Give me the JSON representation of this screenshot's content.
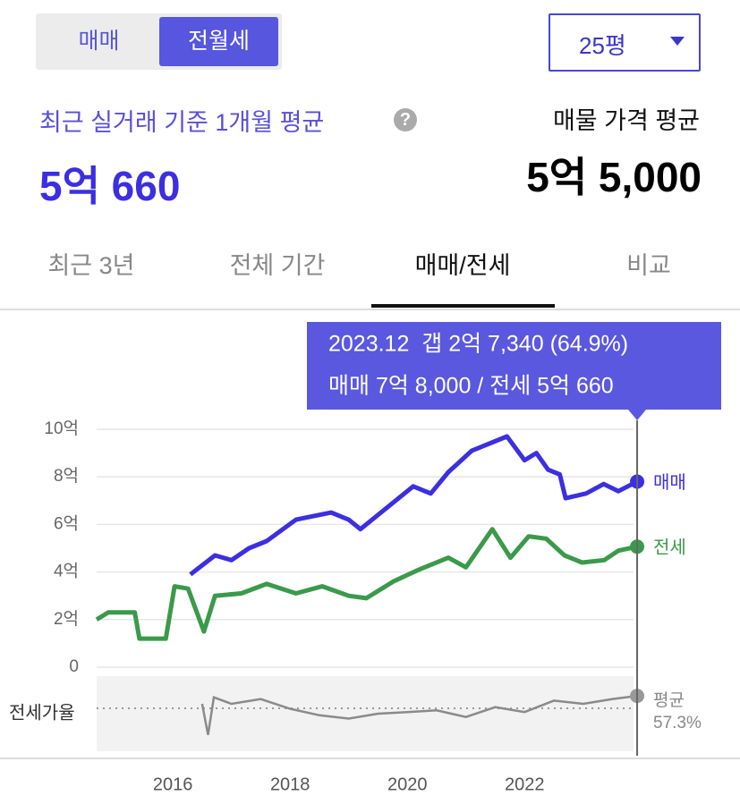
{
  "toggle": {
    "options": [
      "매매",
      "전월세"
    ],
    "selected": 1
  },
  "size_selector": "25평",
  "recent": {
    "label": "최근 실거래 기준 1개월 평균",
    "help_icon": "?",
    "value": "5억 660"
  },
  "listing": {
    "label": "매물 가격 평균",
    "value": "5억 5,000"
  },
  "tabs": {
    "items": [
      "최근 3년",
      "전체 기간",
      "매매/전세",
      "비교"
    ],
    "selected": 2
  },
  "chart_data": {
    "type": "line",
    "xlim": [
      2014.7,
      2023.95
    ],
    "xticks": [
      2016,
      2018,
      2020,
      2022
    ],
    "ylim": [
      0,
      10
    ],
    "yticks": [
      0,
      {
        "value": 2,
        "label": "2억"
      },
      {
        "value": 4,
        "label": "4억"
      },
      {
        "value": 6,
        "label": "6억"
      },
      {
        "value": 8,
        "label": "8억"
      },
      {
        "value": 10,
        "label": "10억"
      }
    ],
    "grid": true,
    "series": [
      {
        "name": "매매",
        "color": "#3b2fe0",
        "x": [
          2016.3,
          2016.72,
          2017.0,
          2017.3,
          2017.6,
          2018.1,
          2018.7,
          2019.0,
          2019.2,
          2019.6,
          2020.1,
          2020.4,
          2020.7,
          2021.1,
          2021.7,
          2022.0,
          2022.2,
          2022.4,
          2022.6,
          2022.7,
          2023.05,
          2023.35,
          2023.6,
          2023.92
        ],
        "values": [
          3.9,
          4.7,
          4.5,
          5.0,
          5.3,
          6.2,
          6.5,
          6.2,
          5.8,
          6.6,
          7.6,
          7.3,
          8.2,
          9.1,
          9.7,
          8.7,
          9.0,
          8.3,
          8.1,
          7.1,
          7.3,
          7.7,
          7.4,
          7.8
        ]
      },
      {
        "name": "전세",
        "color": "#3a9a4a",
        "x": [
          2014.7,
          2014.9,
          2015.35,
          2015.43,
          2015.88,
          2016.03,
          2016.26,
          2016.53,
          2016.72,
          2017.17,
          2017.6,
          2018.1,
          2018.55,
          2019.0,
          2019.3,
          2019.76,
          2020.2,
          2020.7,
          2021.0,
          2021.45,
          2021.76,
          2022.07,
          2022.37,
          2022.68,
          2022.98,
          2023.36,
          2023.6,
          2023.92
        ],
        "values": [
          2.0,
          2.3,
          2.3,
          1.2,
          1.2,
          3.4,
          3.3,
          1.5,
          3.0,
          3.1,
          3.5,
          3.1,
          3.4,
          3.0,
          2.9,
          3.6,
          4.1,
          4.6,
          4.2,
          5.8,
          4.6,
          5.5,
          5.4,
          4.7,
          4.4,
          4.5,
          4.9,
          5.066
        ]
      }
    ],
    "ratio": {
      "name": "전세가율",
      "color": "#8a8a8a",
      "ylim": [
        31,
        77
      ],
      "x": [
        2016.5,
        2016.6,
        2016.7,
        2017.0,
        2017.5,
        2018.0,
        2018.5,
        2019.0,
        2019.5,
        2020.0,
        2020.5,
        2021.0,
        2021.5,
        2022.0,
        2022.5,
        2023.0,
        2023.5,
        2023.92
      ],
      "values": [
        60,
        41,
        64,
        60,
        62.9,
        57,
        53,
        51,
        54,
        55,
        56,
        52,
        58,
        55,
        62,
        60,
        63,
        64.9
      ],
      "average": 57.3,
      "average_name": "평균",
      "average_label": "57.3%"
    },
    "tooltip": {
      "lines": [
        "2023.12  갭 2억 7,340 (64.9%)",
        "매매 7억 8,000 / 전세 5억 660"
      ]
    }
  }
}
